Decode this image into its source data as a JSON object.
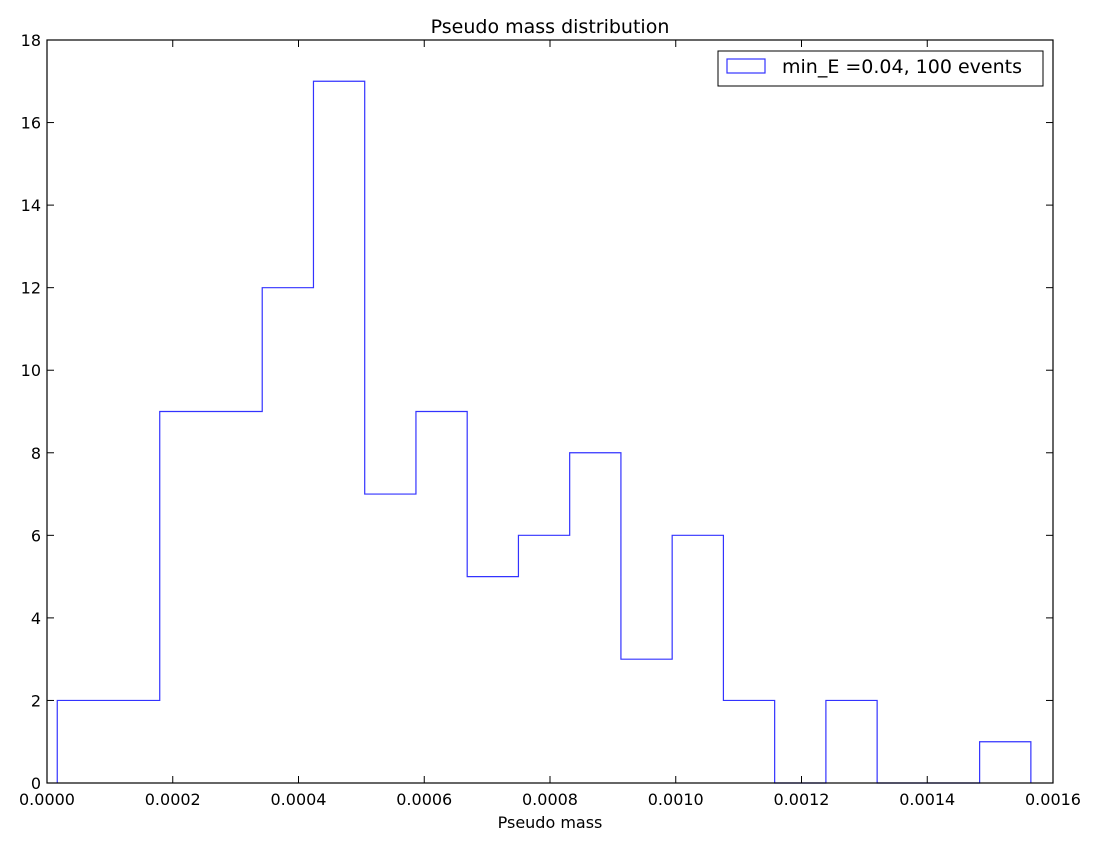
{
  "chart_data": {
    "type": "histogram",
    "title": "Pseudo mass distribution",
    "xlabel": "Pseudo mass",
    "ylabel": "",
    "xlim": [
      0.0,
      0.0016
    ],
    "ylim": [
      0,
      18
    ],
    "x_ticks": [
      "0.0000",
      "0.0002",
      "0.0004",
      "0.0006",
      "0.0008",
      "0.0010",
      "0.0012",
      "0.0014",
      "0.0016"
    ],
    "x_tick_values": [
      0.0,
      0.0002,
      0.0004,
      0.0006,
      0.0008,
      0.001,
      0.0012,
      0.0014,
      0.0016
    ],
    "y_ticks": [
      "0",
      "2",
      "4",
      "6",
      "8",
      "10",
      "12",
      "14",
      "16",
      "18"
    ],
    "y_tick_values": [
      0,
      2,
      4,
      6,
      8,
      10,
      12,
      14,
      16,
      18
    ],
    "bin_edges": [
      1.63e-05,
      9.78e-05,
      0.0001793,
      0.0002608,
      0.0003423,
      0.0004238,
      0.0005053,
      0.0005868,
      0.0006683,
      0.0007498,
      0.0008313,
      0.0009128,
      0.0009943,
      0.0010758,
      0.0011573,
      0.0012388,
      0.0013203,
      0.0014018,
      0.0014833,
      0.0015648
    ],
    "series": [
      {
        "name": "min_E =0.04, 100 events",
        "color": "#3333ff",
        "counts": [
          2,
          2,
          9,
          9,
          12,
          17,
          7,
          9,
          5,
          6,
          8,
          3,
          6,
          2,
          0,
          2,
          0,
          0,
          1
        ]
      }
    ],
    "grid": false,
    "legend_position": "upper right"
  }
}
